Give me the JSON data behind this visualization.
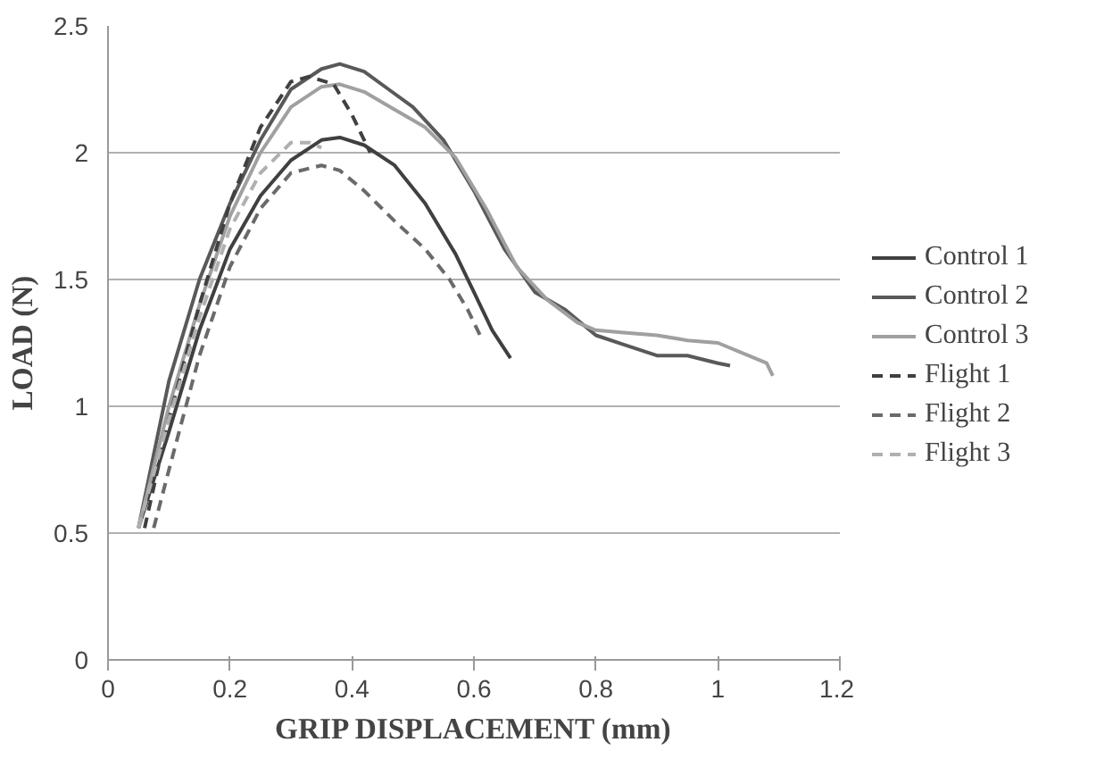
{
  "chart_data": {
    "type": "line",
    "xlabel": "GRIP DISPLACEMENT (mm)",
    "ylabel": "LOAD (N)",
    "xlim": [
      0,
      1.2
    ],
    "xticks": [
      0,
      0.2,
      0.4,
      0.6,
      0.8,
      1,
      1.2
    ],
    "ylim": [
      0,
      2.5
    ],
    "yticks": [
      0,
      0.5,
      1,
      1.5,
      2,
      2.5
    ],
    "grid": "y",
    "legend": "right",
    "marker": "none",
    "series": [
      {
        "name": "Control 1",
        "color": "#404040",
        "line_style": "solid",
        "x": [
          0.05,
          0.1,
          0.15,
          0.2,
          0.25,
          0.3,
          0.35,
          0.38,
          0.42,
          0.47,
          0.52,
          0.57,
          0.6,
          0.63,
          0.66
        ],
        "values": [
          0.52,
          0.9,
          1.3,
          1.62,
          1.83,
          1.97,
          2.05,
          2.06,
          2.03,
          1.95,
          1.8,
          1.6,
          1.45,
          1.3,
          1.19
        ]
      },
      {
        "name": "Control 2",
        "color": "#595959",
        "line_style": "solid",
        "x": [
          0.05,
          0.1,
          0.15,
          0.2,
          0.25,
          0.3,
          0.35,
          0.38,
          0.42,
          0.46,
          0.5,
          0.55,
          0.6,
          0.65,
          0.7,
          0.75,
          0.8,
          0.85,
          0.9,
          0.95,
          1.0,
          1.02
        ],
        "values": [
          0.52,
          1.1,
          1.5,
          1.8,
          2.05,
          2.25,
          2.33,
          2.35,
          2.32,
          2.25,
          2.18,
          2.05,
          1.85,
          1.62,
          1.45,
          1.38,
          1.28,
          1.24,
          1.2,
          1.2,
          1.17,
          1.16
        ]
      },
      {
        "name": "Control 3",
        "color": "#a0a0a0",
        "line_style": "solid",
        "x": [
          0.05,
          0.1,
          0.15,
          0.2,
          0.25,
          0.3,
          0.35,
          0.38,
          0.42,
          0.47,
          0.52,
          0.57,
          0.62,
          0.67,
          0.72,
          0.77,
          0.8,
          0.85,
          0.9,
          0.95,
          1.0,
          1.05,
          1.08,
          1.09
        ],
        "values": [
          0.52,
          1.0,
          1.4,
          1.75,
          2.0,
          2.18,
          2.26,
          2.27,
          2.24,
          2.17,
          2.1,
          1.98,
          1.78,
          1.55,
          1.42,
          1.33,
          1.3,
          1.29,
          1.28,
          1.26,
          1.25,
          1.2,
          1.17,
          1.12
        ]
      },
      {
        "name": "Flight 1",
        "color": "#404040",
        "line_style": "dashed",
        "x": [
          0.06,
          0.1,
          0.15,
          0.2,
          0.25,
          0.3,
          0.33,
          0.37,
          0.4,
          0.43
        ],
        "values": [
          0.52,
          0.95,
          1.4,
          1.8,
          2.1,
          2.28,
          2.3,
          2.27,
          2.15,
          2.0
        ]
      },
      {
        "name": "Flight 2",
        "color": "#6a6a6a",
        "line_style": "dashed",
        "x": [
          0.075,
          0.1,
          0.15,
          0.2,
          0.25,
          0.3,
          0.35,
          0.38,
          0.42,
          0.47,
          0.52,
          0.56,
          0.59,
          0.61
        ],
        "values": [
          0.52,
          0.75,
          1.2,
          1.55,
          1.78,
          1.92,
          1.95,
          1.93,
          1.85,
          1.73,
          1.62,
          1.5,
          1.38,
          1.28
        ]
      },
      {
        "name": "Flight 3",
        "color": "#b0b0b0",
        "line_style": "dashed",
        "x": [
          0.05,
          0.1,
          0.15,
          0.2,
          0.25,
          0.3,
          0.33,
          0.35
        ],
        "values": [
          0.52,
          0.95,
          1.35,
          1.7,
          1.92,
          2.04,
          2.04,
          2.02
        ]
      }
    ]
  }
}
